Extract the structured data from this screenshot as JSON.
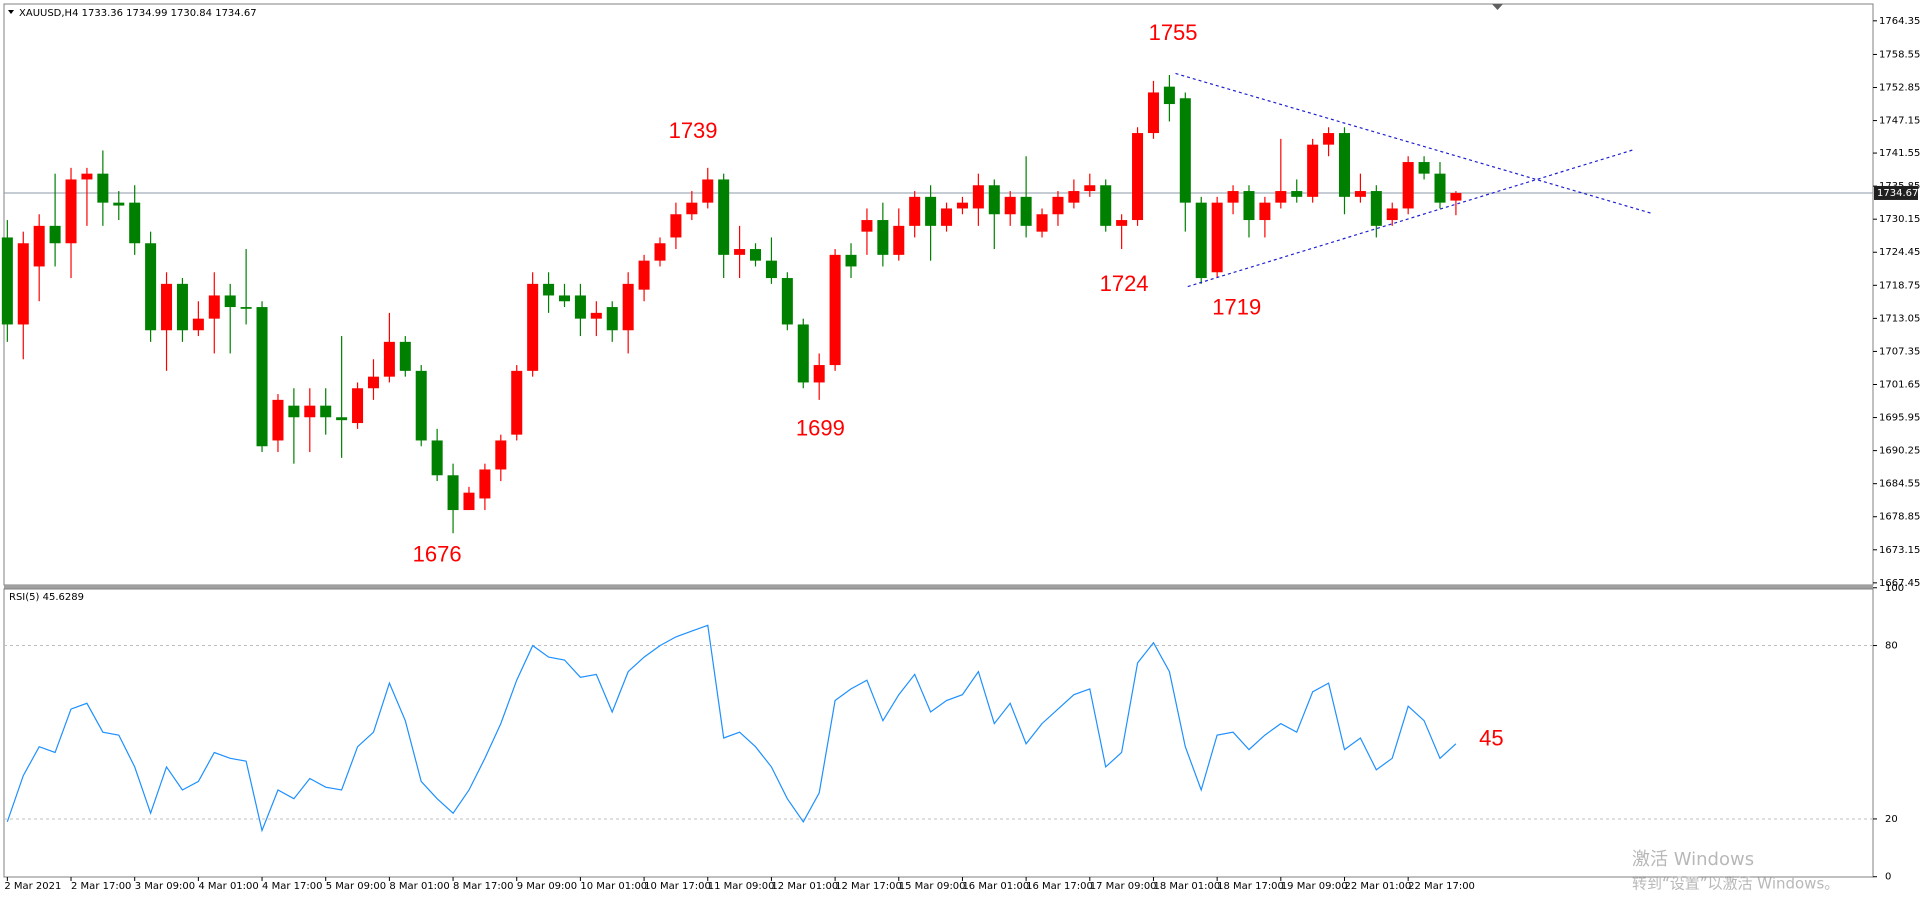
{
  "chart_data": {
    "type": "candlestick",
    "title": "XAUUSD,H4  1733.36 1734.99 1730.84 1734.67",
    "categories": [
      "2 Mar 2021",
      null,
      null,
      null,
      "2 Mar 17:00",
      null,
      null,
      null,
      "3 Mar 09:00",
      null,
      null,
      null,
      "4 Mar 01:00",
      null,
      null,
      null,
      "4 Mar 17:00",
      null,
      null,
      null,
      "5 Mar 09:00",
      null,
      null,
      null,
      "8 Mar 01:00",
      null,
      null,
      null,
      "8 Mar 17:00",
      null,
      null,
      null,
      "9 Mar 09:00",
      null,
      null,
      null,
      "10 Mar 01:00",
      null,
      null,
      null,
      "10 Mar 17:00",
      null,
      null,
      null,
      "11 Mar 09:00",
      null,
      null,
      null,
      "12 Mar 01:00",
      null,
      null,
      null,
      "12 Mar 17:00",
      null,
      null,
      null,
      "15 Mar 09:00",
      null,
      null,
      null,
      "16 Mar 01:00",
      null,
      null,
      null,
      "16 Mar 17:00",
      null,
      null,
      null,
      "17 Mar 09:00",
      null,
      null,
      null,
      "18 Mar 01:00",
      null,
      null,
      null,
      "18 Mar 17:00",
      null,
      null,
      null,
      "19 Mar 09:00",
      null,
      null,
      null,
      "22 Mar 01:00",
      null,
      null,
      null,
      "22 Mar 17:00",
      null,
      null,
      null
    ],
    "open": [
      1727,
      1712,
      1722,
      1729,
      1726,
      1737,
      1738,
      1733,
      1733,
      1726,
      1711,
      1719,
      1711,
      1713,
      1717,
      1715,
      1715,
      1692,
      1698,
      1696,
      1698,
      1696,
      1695,
      1701,
      1703,
      1709,
      1704,
      1692,
      1686,
      1680,
      1682,
      1687,
      1693,
      1704,
      1719,
      1717,
      1717,
      1713,
      1715,
      1711,
      1718,
      1723,
      1727,
      1731,
      1733,
      1737,
      1724,
      1725,
      1723,
      1720,
      1712,
      1702,
      1705,
      1724,
      1728,
      1730,
      1724,
      1729,
      1734,
      1729,
      1732,
      1732,
      1736,
      1731,
      1734,
      1728,
      1731,
      1733,
      1735,
      1736,
      1729,
      1730,
      1745,
      1753,
      1751,
      1733,
      1721,
      1733,
      1735,
      1730,
      1733,
      1735,
      1734,
      1743,
      1745,
      1734,
      1735,
      1730,
      1732,
      1740,
      1738,
      1733.36
    ],
    "high": [
      1730,
      1728,
      1731,
      1738,
      1739,
      1739,
      1742,
      1735,
      1736,
      1728,
      1721,
      1720,
      1716,
      1721,
      1719,
      1725,
      1716,
      1700,
      1701,
      1701,
      1701,
      1710,
      1702,
      1706,
      1714,
      1710,
      1705,
      1694,
      1688,
      1684,
      1688,
      1693,
      1705,
      1721,
      1721,
      1719,
      1719,
      1716,
      1716,
      1721,
      1724,
      1727,
      1733,
      1735,
      1739,
      1738,
      1729,
      1726,
      1727,
      1721,
      1713,
      1707,
      1725,
      1726,
      1732,
      1733,
      1732,
      1735,
      1736,
      1733,
      1734,
      1738,
      1737,
      1735,
      1741,
      1732,
      1735,
      1737,
      1738,
      1737,
      1731,
      1746,
      1754,
      1755,
      1752,
      1734,
      1734,
      1736,
      1736,
      1734,
      1744,
      1737,
      1744,
      1746,
      1746,
      1738,
      1736,
      1733,
      1741,
      1741,
      1740,
      1734.99
    ],
    "low": [
      1709,
      1706,
      1716,
      1722,
      1720,
      1729,
      1729,
      1730,
      1724,
      1709,
      1704,
      1709,
      1710,
      1707,
      1707,
      1712,
      1690,
      1690,
      1688,
      1690,
      1693,
      1689,
      1694,
      1699,
      1702,
      1703,
      1691,
      1685,
      1676,
      1680,
      1680,
      1685,
      1692,
      1703,
      1714,
      1715,
      1710,
      1710,
      1709,
      1707,
      1716,
      1722,
      1725,
      1730,
      1732,
      1720,
      1720,
      1722,
      1719,
      1711,
      1701,
      1699,
      1704,
      1720,
      1724,
      1722,
      1723,
      1727,
      1723,
      1728,
      1731,
      1729,
      1725,
      1729,
      1727,
      1727,
      1729,
      1732,
      1734,
      1728,
      1725,
      1729,
      1744,
      1747,
      1728,
      1719,
      1720,
      1731,
      1727,
      1727,
      1732,
      1733,
      1733,
      1741,
      1731,
      1733,
      1727,
      1729,
      1731,
      1737,
      1732,
      1730.84
    ],
    "close": [
      1712,
      1726,
      1729,
      1726,
      1737,
      1738,
      1733,
      1732.5,
      1726,
      1711,
      1719,
      1711,
      1713,
      1717,
      1715,
      1714.7,
      1691,
      1699,
      1696,
      1698,
      1696,
      1695.5,
      1701,
      1703,
      1709,
      1704,
      1692,
      1686,
      1680,
      1683,
      1687,
      1692,
      1704,
      1719,
      1717,
      1716,
      1713,
      1714,
      1711,
      1719,
      1723,
      1726,
      1731,
      1733,
      1737,
      1724,
      1725,
      1723,
      1720,
      1712,
      1702,
      1705,
      1724,
      1722,
      1730,
      1724,
      1729,
      1734,
      1729,
      1732,
      1733,
      1736,
      1731,
      1734,
      1729,
      1731,
      1734,
      1735,
      1736,
      1729,
      1730,
      1745,
      1752,
      1750,
      1733,
      1720,
      1733,
      1735,
      1730,
      1733,
      1735,
      1734,
      1743,
      1745,
      1734,
      1735,
      1729,
      1732,
      1740,
      1738,
      1733,
      1734.67
    ],
    "up_color": "#ff0000",
    "down_color": "#008000",
    "ylim": [
      1667.45,
      1764.35
    ],
    "yticks": [
      1764.35,
      1758.55,
      1752.85,
      1747.15,
      1741.55,
      1735.85,
      1730.15,
      1724.45,
      1718.75,
      1713.05,
      1707.35,
      1701.65,
      1695.95,
      1690.25,
      1684.55,
      1678.85,
      1673.15,
      1667.45
    ],
    "current_price": 1734.67,
    "annotations": [
      "1755",
      "1739",
      "1724",
      "1719",
      "1699",
      "1676",
      "45"
    ],
    "rsi": {
      "title": "RSI(5) 45.6289",
      "color": "#1e90ff",
      "values": [
        19,
        35,
        45,
        43,
        58,
        60,
        50,
        49,
        38,
        22,
        38,
        30,
        33,
        43,
        41,
        40,
        16,
        30,
        27,
        34,
        31,
        30,
        45,
        50,
        67,
        54,
        33,
        27,
        22,
        30,
        41,
        53,
        68,
        80,
        76,
        75,
        69,
        70,
        57,
        71,
        76,
        80,
        83,
        85,
        87,
        48,
        50,
        45,
        38,
        27,
        19,
        29,
        61,
        65,
        68,
        54,
        63,
        70,
        57,
        61,
        63,
        71,
        53,
        60,
        46,
        53,
        58,
        63,
        65,
        38,
        43,
        74,
        81,
        71,
        45,
        30,
        49,
        50,
        44,
        49,
        53,
        50,
        64,
        67,
        44,
        48,
        37,
        41,
        59,
        54,
        41,
        46
      ],
      "ylim": [
        0,
        100
      ],
      "yticks": [
        100,
        80,
        20,
        0
      ],
      "levels": [
        80,
        20
      ]
    },
    "watermark": [
      "激活 Windows",
      "转到“设置”以激活 Windows。"
    ]
  }
}
